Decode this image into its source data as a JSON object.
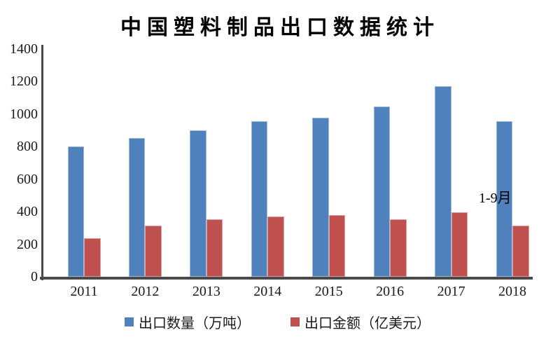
{
  "page": {
    "background": "#ffffff",
    "axis_color": "#4a4a4a",
    "text_color": "#1a1a1a"
  },
  "chart_data": {
    "type": "bar",
    "title": "中国塑料制品出口数据统计",
    "categories": [
      "2011",
      "2012",
      "2013",
      "2014",
      "2015",
      "2016",
      "2017",
      "2018"
    ],
    "series": [
      {
        "name": "出口数量（万吨）",
        "color": "#4F81BD",
        "values": [
          800,
          855,
          900,
          955,
          978,
          1045,
          1172,
          958
        ]
      },
      {
        "name": "出口金额（亿美元）",
        "color": "#C0504D",
        "values": [
          235,
          315,
          355,
          370,
          378,
          355,
          398,
          315
        ]
      }
    ],
    "ylim": [
      0,
      1400
    ],
    "yticks": [
      0,
      200,
      400,
      600,
      800,
      1000,
      1200,
      1400
    ],
    "grid": false,
    "legend_position": "bottom",
    "annotation": {
      "text": "1-9月",
      "near_category": "2018"
    }
  }
}
